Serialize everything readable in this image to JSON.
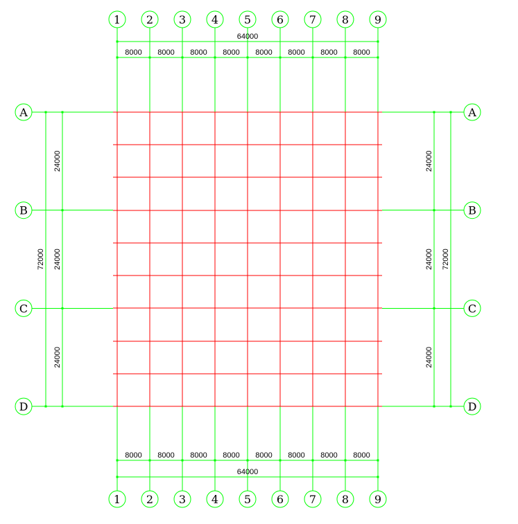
{
  "colors": {
    "axis": "#00ff00",
    "grid": "#ff0000",
    "text": "#000000"
  },
  "columns": [
    "1",
    "2",
    "3",
    "4",
    "5",
    "6",
    "7",
    "8",
    "9"
  ],
  "rows": [
    "A",
    "B",
    "C",
    "D"
  ],
  "dimensions": {
    "column_spacings": [
      "8000",
      "8000",
      "8000",
      "8000",
      "8000",
      "8000",
      "8000",
      "8000"
    ],
    "column_total": "64000",
    "row_spacings": [
      "24000",
      "24000",
      "24000"
    ],
    "row_total": "72000"
  },
  "secondary_beams_per_bay": 2
}
